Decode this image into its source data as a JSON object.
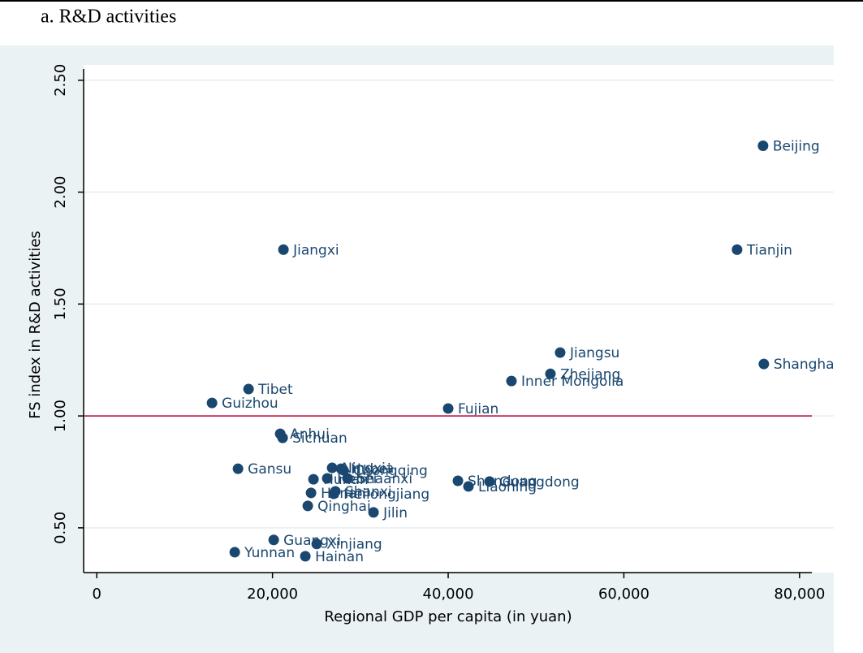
{
  "chart_data": {
    "type": "scatter",
    "title": "a. R&D activities",
    "x_label": "Regional GDP per capita (in yuan)",
    "y_label": "FS index in R&D activities",
    "xlim": [
      -1500,
      81400
    ],
    "ylim": [
      0.3,
      2.55
    ],
    "xticks": [
      0,
      {
        "value": 20000,
        "label": "20,000"
      },
      {
        "value": 40000,
        "label": "40,000"
      },
      {
        "value": 60000,
        "label": "60,000"
      },
      {
        "value": 80000,
        "label": "80,000"
      }
    ],
    "yticks": [
      {
        "value": 0.5,
        "label": "0.50"
      },
      {
        "value": 1,
        "label": "1.00"
      },
      {
        "value": 1.5,
        "label": "1.50"
      },
      {
        "value": 2,
        "label": "2.00"
      },
      {
        "value": 2.5,
        "label": "2.50"
      }
    ],
    "grid": true,
    "reference_line": 1,
    "reference_color": "#c10534",
    "color": "#1a476f",
    "labels": [
      "Beijing",
      "Tianjin",
      "Shanghai",
      "Jiangsu",
      "Zhejiang",
      "Inner Mongolia",
      "Fujian",
      "Jiangxi",
      "Tibet",
      "Guizhou",
      "Anhui",
      "Sichuan",
      "Gansu",
      "Ningxia",
      "Hubei",
      "Chongqing",
      "Shaanxi",
      "Hebei",
      "Hunan",
      "Shanxi",
      "Heilongjiang",
      "Henan",
      "Qinghai",
      "Jilin",
      "Shandong",
      "Guangdong",
      "Liaoning",
      "Guangxi",
      "Xinjiang",
      "Yunnan",
      "Hainan"
    ],
    "x": [
      75843,
      72887,
      75935,
      52748,
      51640,
      47206,
      40000,
      21247,
      17275,
      13118,
      20878,
      21155,
      16074,
      26789,
      27806,
      28083,
      28545,
      26236,
      24665,
      27159,
      26975,
      24388,
      24018,
      31501,
      41109,
      44711,
      42309,
      20139,
      25035,
      15704,
      23741
    ],
    "values": [
      2.207,
      1.743,
      1.232,
      1.283,
      1.188,
      1.156,
      1.033,
      1.743,
      1.12,
      1.058,
      0.92,
      0.902,
      0.764,
      0.768,
      0.764,
      0.757,
      0.721,
      0.721,
      0.717,
      0.663,
      0.652,
      0.656,
      0.598,
      0.569,
      0.71,
      0.707,
      0.685,
      0.446,
      0.428,
      0.391,
      0.373
    ]
  }
}
